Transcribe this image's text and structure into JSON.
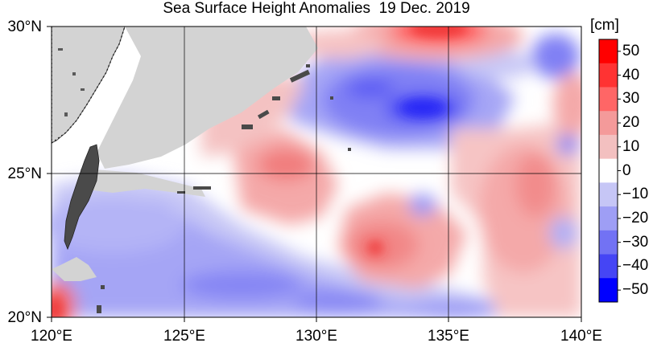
{
  "title": "Sea Surface Height Anomalies  19 Dec. 2019",
  "map": {
    "lat_labels": [
      "30°N",
      "25°N",
      "20°N"
    ],
    "lon_labels": [
      "120°E",
      "125°E",
      "130°E",
      "135°E",
      "140°E"
    ],
    "lat_range": [
      20,
      30
    ],
    "lon_range": [
      120,
      140
    ],
    "grid": true,
    "land_color": "#d3d3d3",
    "coast_color": "#333333"
  },
  "colorbar": {
    "unit": "[cm]",
    "ticks": [
      "50",
      "40",
      "30",
      "20",
      "10",
      "0",
      "−10",
      "−20",
      "−30",
      "−40",
      "−50"
    ],
    "colors": [
      "#ff0000",
      "#ff3333",
      "#ff6666",
      "#f49a9a",
      "#f3c0c0",
      "#ffffff",
      "#c6c6f6",
      "#9e9ef5",
      "#7272f4",
      "#4545f5",
      "#0000ff"
    ]
  }
}
